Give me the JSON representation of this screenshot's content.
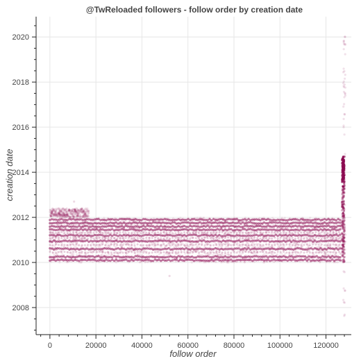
{
  "chart_data": {
    "type": "scatter",
    "title": "@TwReloaded followers - follow order by creation date",
    "xlabel": "follow order",
    "ylabel": "creation date",
    "xlim": [
      -6000,
      131000
    ],
    "ylim": [
      2006.8,
      2020.9
    ],
    "x_ticks": [
      0,
      20000,
      40000,
      60000,
      80000,
      100000,
      120000
    ],
    "x_tick_labels": [
      "0",
      "20000",
      "40000",
      "60000",
      "80000",
      "100000",
      "120000"
    ],
    "y_ticks": [
      2008,
      2010,
      2012,
      2014,
      2016,
      2018,
      2020
    ],
    "y_tick_labels": [
      "2008",
      "2010",
      "2012",
      "2014",
      "2016",
      "2018",
      "2020"
    ],
    "grid": true,
    "point_color": "#8b0a50",
    "series": [
      {
        "x_range": [
          0,
          127000
        ],
        "dense_bands": [
          2010.1,
          2010.25,
          2010.6,
          2010.95,
          2011.2,
          2011.45,
          2011.6,
          2011.75,
          2011.9
        ],
        "faint_bands": [
          2010.45,
          2010.78,
          2011.08,
          2011.32
        ],
        "early_band": {
          "x_range": [
            0,
            17000
          ],
          "y_range": [
            2012.0,
            2012.4
          ]
        },
        "right_edge_cluster": {
          "x": 127500,
          "y_range": [
            2010.0,
            2014.7
          ]
        },
        "right_edge_sparse": {
          "x": 128000,
          "y_range": [
            2007.4,
            2020.2
          ]
        },
        "outliers": [
          [
            10500,
            2012.7
          ],
          [
            52000,
            2009.4
          ]
        ]
      }
    ]
  }
}
